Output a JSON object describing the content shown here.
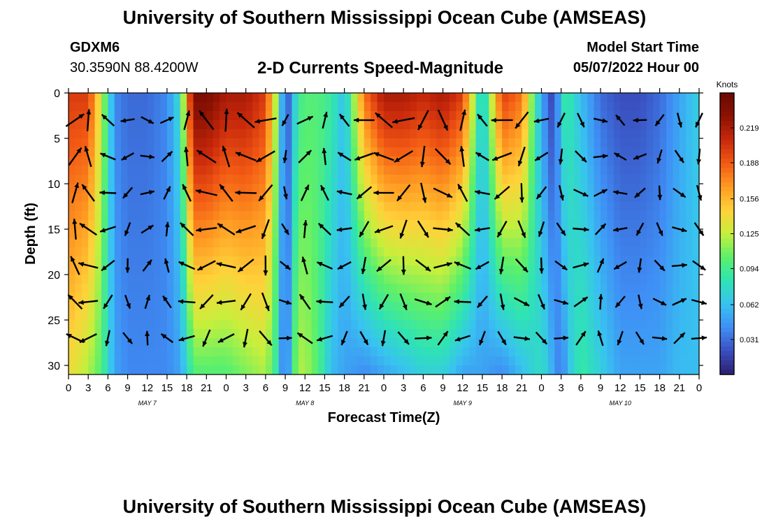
{
  "page": {
    "title_top": "University of Southern Mississippi Ocean Cube (AMSEAS)",
    "title_bottom": "University of Southern Mississippi Ocean Cube (AMSEAS)",
    "station": "GDXM6",
    "coords": "30.3590N  88.4200W",
    "plot_title": "2-D Currents Speed-Magnitude",
    "model_start_label": "Model Start Time",
    "model_start_value": "05/07/2022 Hour 00"
  },
  "colors": {
    "background": "#ffffff",
    "scale": [
      "#2b1e6e",
      "#3a4fc0",
      "#3f8ef5",
      "#38c3f0",
      "#2fe3b4",
      "#5cf06a",
      "#c7ef3c",
      "#ffd23a",
      "#ff9a22",
      "#f25a14",
      "#c8280b",
      "#8c1203",
      "#6a0902"
    ]
  },
  "chart_data": {
    "type": "heatmap",
    "title": "2-D Currents Speed-Magnitude",
    "xlabel": "Forecast Time(Z)",
    "ylabel": "Depth (ft)",
    "ylim": [
      0,
      31
    ],
    "xlim": [
      0,
      96
    ],
    "y_ticks": [
      0,
      5,
      10,
      15,
      20,
      25,
      30
    ],
    "x_ticks": [
      0,
      3,
      6,
      9,
      12,
      15,
      18,
      21,
      24,
      27,
      30,
      33,
      36,
      39,
      42,
      45,
      48,
      51,
      54,
      57,
      60,
      63,
      66,
      69,
      72,
      75,
      78,
      81,
      84,
      87,
      90,
      93,
      96
    ],
    "x_tick_labels": [
      "0",
      "3",
      "6",
      "9",
      "12",
      "15",
      "18",
      "21",
      "0",
      "3",
      "6",
      "9",
      "12",
      "15",
      "18",
      "21",
      "0",
      "3",
      "6",
      "9",
      "12",
      "15",
      "18",
      "21",
      "0",
      "3",
      "6",
      "9",
      "12",
      "15",
      "18",
      "21",
      "0"
    ],
    "day_labels": [
      {
        "text": "MAY 7",
        "hour": 12
      },
      {
        "text": "MAY 8",
        "hour": 36
      },
      {
        "text": "MAY 9",
        "hour": 60
      },
      {
        "text": "MAY 10",
        "hour": 84
      }
    ],
    "colorbar": {
      "unit_label": "Knots",
      "min": 0.0,
      "max": 0.25,
      "ticks": [
        0.031,
        0.062,
        0.094,
        0.125,
        0.156,
        0.188,
        0.219
      ]
    },
    "arrow_hours": [
      1,
      3,
      6,
      9,
      12,
      15,
      18,
      21,
      24,
      27,
      30,
      33,
      36,
      39,
      42,
      45,
      48,
      51,
      54,
      57,
      60,
      63,
      66,
      69,
      72,
      75,
      78,
      81,
      84,
      87,
      90,
      93,
      96
    ],
    "arrow_depths": [
      3,
      7,
      11,
      15,
      19,
      23,
      27
    ],
    "speed_profile": {
      "hours": [
        0,
        3,
        5,
        7,
        9,
        12,
        15,
        17,
        18,
        19,
        21,
        24,
        27,
        30,
        32,
        33,
        34,
        35,
        36,
        38,
        40,
        42,
        45,
        48,
        51,
        54,
        57,
        60,
        63,
        66,
        69,
        72,
        74,
        75,
        76,
        78,
        81,
        84,
        87,
        90,
        93,
        96
      ],
      "surface": [
        0.2,
        0.2,
        0.13,
        0.04,
        0.03,
        0.03,
        0.04,
        0.08,
        0.16,
        0.24,
        0.24,
        0.22,
        0.22,
        0.2,
        0.1,
        0.01,
        0.05,
        0.09,
        0.1,
        0.1,
        0.09,
        0.06,
        0.18,
        0.22,
        0.22,
        0.21,
        0.22,
        0.2,
        0.06,
        0.2,
        0.18,
        0.05,
        0.01,
        0.08,
        0.09,
        0.06,
        0.03,
        0.02,
        0.02,
        0.03,
        0.05,
        0.07
      ],
      "bottom": [
        0.14,
        0.12,
        0.1,
        0.05,
        0.04,
        0.04,
        0.04,
        0.05,
        0.07,
        0.1,
        0.1,
        0.1,
        0.11,
        0.12,
        0.08,
        0.01,
        0.09,
        0.12,
        0.12,
        0.1,
        0.06,
        0.05,
        0.04,
        0.05,
        0.06,
        0.07,
        0.07,
        0.05,
        0.05,
        0.04,
        0.06,
        0.08,
        0.05,
        0.03,
        0.06,
        0.09,
        0.07,
        0.05,
        0.05,
        0.05,
        0.06,
        0.06
      ]
    }
  }
}
